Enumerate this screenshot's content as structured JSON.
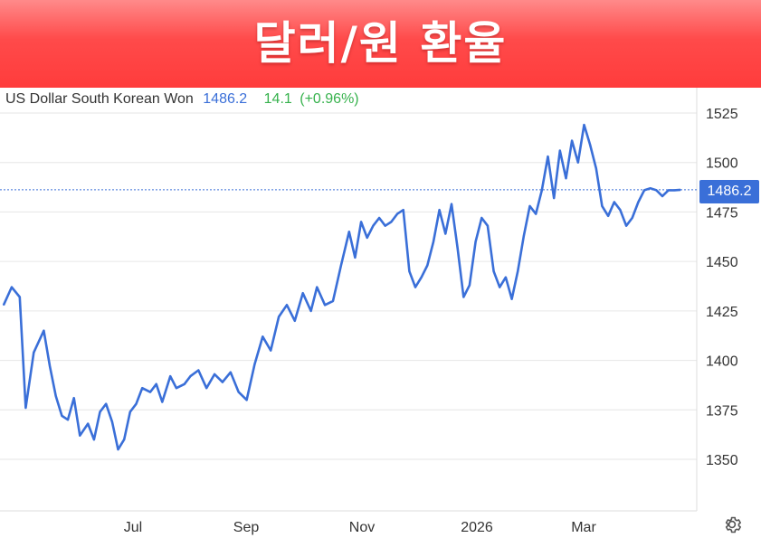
{
  "banner": {
    "title": "달러/원 환율"
  },
  "header": {
    "name": "US Dollar South Korean Won",
    "last": "1486.2",
    "change": "14.1",
    "change_pct": "(+0.96%)"
  },
  "price_tag": "1486.2",
  "colors": {
    "line": "#3a6fd8",
    "grid": "#e6e6e6",
    "banner": "#ff4a4a",
    "positive": "#37b24d"
  },
  "icons": {
    "settings": "gear-icon"
  },
  "chart_data": {
    "type": "line",
    "title": "",
    "xlabel": "",
    "ylabel": "",
    "ylim": [
      1325,
      1535
    ],
    "yticks": [
      1350,
      1375,
      1400,
      1425,
      1450,
      1475,
      1500,
      1525
    ],
    "ytick_labels": [
      "1350",
      "1375",
      "1400",
      "1425",
      "1450",
      "1475",
      "1500",
      "1525"
    ],
    "xticks": [
      "Jul",
      "Sep",
      "Nov",
      "2026",
      "Mar"
    ],
    "grid": true,
    "last_value": 1486.2,
    "series": [
      {
        "x": [
          "2025-05-14",
          "2025-05-18",
          "2025-05-22",
          "2025-05-25",
          "2025-05-29",
          "2025-06-03",
          "2025-06-06",
          "2025-06-09",
          "2025-06-12",
          "2025-06-15",
          "2025-06-18",
          "2025-06-21",
          "2025-06-25",
          "2025-06-28",
          "2025-07-01",
          "2025-07-04",
          "2025-07-07",
          "2025-07-10",
          "2025-07-13",
          "2025-07-16",
          "2025-07-19",
          "2025-07-22",
          "2025-07-26",
          "2025-07-29",
          "2025-08-01",
          "2025-08-05",
          "2025-08-08",
          "2025-08-12",
          "2025-08-15",
          "2025-08-19",
          "2025-08-23",
          "2025-08-27",
          "2025-08-31",
          "2025-09-04",
          "2025-09-08",
          "2025-09-12",
          "2025-09-16",
          "2025-09-20",
          "2025-09-24",
          "2025-09-28",
          "2025-10-02",
          "2025-10-06",
          "2025-10-10",
          "2025-10-14",
          "2025-10-17",
          "2025-10-21",
          "2025-10-25",
          "2025-10-29",
          "2025-11-02",
          "2025-11-05",
          "2025-11-08",
          "2025-11-11",
          "2025-11-14",
          "2025-11-17",
          "2025-11-20",
          "2025-11-23",
          "2025-11-26",
          "2025-11-29",
          "2025-12-02",
          "2025-12-05",
          "2025-12-08",
          "2025-12-11",
          "2025-12-14",
          "2025-12-17",
          "2025-12-20",
          "2025-12-23",
          "2025-12-26",
          "2025-12-29",
          "2026-01-01",
          "2026-01-04",
          "2026-01-07",
          "2026-01-10",
          "2026-01-13",
          "2026-01-16",
          "2026-01-19",
          "2026-01-22",
          "2026-01-25",
          "2026-01-28",
          "2026-01-31",
          "2026-02-03",
          "2026-02-06",
          "2026-02-09",
          "2026-02-12",
          "2026-02-15",
          "2026-02-18",
          "2026-02-21",
          "2026-02-24",
          "2026-02-27",
          "2026-03-02",
          "2026-03-05",
          "2026-03-08",
          "2026-03-11",
          "2026-03-14",
          "2026-03-17",
          "2026-03-20",
          "2026-03-23",
          "2026-03-26",
          "2026-03-29",
          "2026-04-01",
          "2026-04-04",
          "2026-04-07",
          "2026-04-10",
          "2026-04-13",
          "2026-04-16"
        ],
        "y": [
          1428,
          1437,
          1432,
          1376,
          1404,
          1415,
          1397,
          1382,
          1372,
          1370,
          1381,
          1362,
          1368,
          1360,
          1374,
          1378,
          1369,
          1355,
          1360,
          1374,
          1378,
          1386,
          1384,
          1388,
          1379,
          1392,
          1386,
          1388,
          1392,
          1395,
          1386,
          1393,
          1389,
          1394,
          1384,
          1380,
          1398,
          1412,
          1405,
          1422,
          1428,
          1420,
          1434,
          1425,
          1437,
          1428,
          1430,
          1448,
          1465,
          1452,
          1470,
          1462,
          1468,
          1472,
          1468,
          1470,
          1474,
          1476,
          1445,
          1437,
          1442,
          1448,
          1460,
          1476,
          1464,
          1479,
          1457,
          1432,
          1438,
          1460,
          1472,
          1468,
          1445,
          1437,
          1442,
          1431,
          1445,
          1463,
          1478,
          1474,
          1486,
          1503,
          1482,
          1506,
          1492,
          1511,
          1500,
          1519,
          1509,
          1497,
          1478,
          1473,
          1480,
          1476,
          1468,
          1472,
          1480,
          1486,
          1487,
          1486,
          1483,
          1486,
          1486,
          1486.2
        ]
      }
    ]
  }
}
